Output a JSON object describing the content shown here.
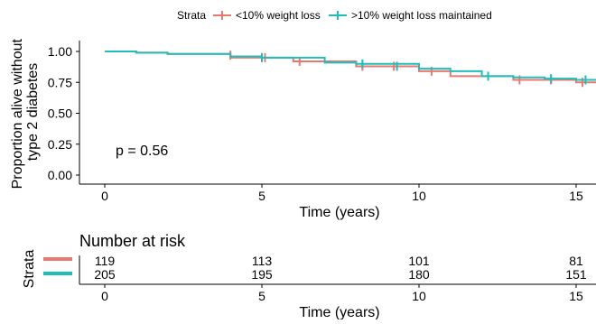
{
  "legend": {
    "title": "Strata",
    "items": [
      {
        "label": "<10% weight loss",
        "color": "#E8796E"
      },
      {
        "label": ">10% weight loss maintained",
        "color": "#22BDBB"
      }
    ]
  },
  "annotation": {
    "pvalue": "p = 0.56"
  },
  "risk_table": {
    "title": "Number at risk",
    "ylabel": "Strata",
    "xlabel": "Time (years)",
    "times": [
      0,
      5,
      10,
      15
    ],
    "rows": [
      {
        "color": "#E8796E",
        "values": [
          "119",
          "113",
          "101",
          "81"
        ]
      },
      {
        "color": "#22BDBB",
        "values": [
          "205",
          "195",
          "180",
          "151"
        ]
      }
    ]
  },
  "chart_data": {
    "type": "line",
    "step": true,
    "xlabel": "Time (years)",
    "ylabel": "Proportion alive without type 2 diabetes",
    "ylabel_lines": [
      "Proportion alive without",
      "type 2 diabetes"
    ],
    "xlim": [
      0,
      15
    ],
    "ylim": [
      0,
      1
    ],
    "xticks": [
      0,
      5,
      10,
      15
    ],
    "yticks": [
      0,
      0.25,
      0.5,
      0.75,
      1.0
    ],
    "ytick_labels": [
      "0.00",
      "0.25",
      "0.50",
      "0.75",
      "1.00"
    ],
    "grid": false,
    "legend_position": "top",
    "series": [
      {
        "name": "<10% weight loss",
        "color": "#E8796E",
        "x": [
          0,
          1,
          2,
          4,
          6,
          8,
          10,
          11,
          13,
          15
        ],
        "y": [
          1.0,
          0.99,
          0.98,
          0.95,
          0.92,
          0.88,
          0.84,
          0.8,
          0.77,
          0.75
        ],
        "censor_x": [
          4,
          5.1,
          6.2,
          8.2,
          9.2,
          10.4,
          13.2,
          14.2,
          15.2
        ],
        "censor_y": [
          0.97,
          0.95,
          0.92,
          0.88,
          0.88,
          0.84,
          0.77,
          0.77,
          0.75
        ]
      },
      {
        "name": ">10% weight loss maintained",
        "color": "#22BDBB",
        "x": [
          0,
          1,
          2,
          4,
          5,
          7,
          8,
          10,
          11,
          12,
          13,
          14,
          15
        ],
        "y": [
          1.0,
          0.99,
          0.98,
          0.96,
          0.95,
          0.91,
          0.9,
          0.86,
          0.84,
          0.8,
          0.79,
          0.78,
          0.77
        ],
        "censor_x": [
          5,
          8.2,
          9.3,
          12.2,
          14.2,
          15.3
        ],
        "censor_y": [
          0.95,
          0.9,
          0.88,
          0.8,
          0.78,
          0.77
        ]
      }
    ]
  }
}
